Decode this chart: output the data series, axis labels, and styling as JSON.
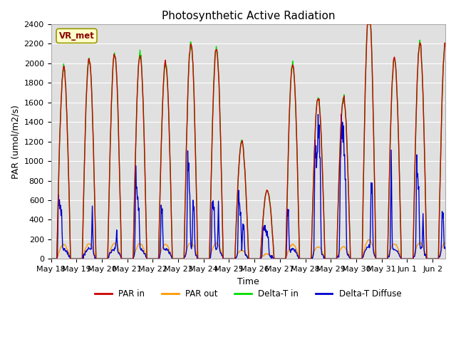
{
  "title": "Photosynthetic Active Radiation",
  "xlabel": "Time",
  "ylabel": "PAR (umol/m2/s)",
  "ylim": [
    0,
    2400
  ],
  "yticks": [
    0,
    200,
    400,
    600,
    800,
    1000,
    1200,
    1400,
    1600,
    1800,
    2000,
    2200,
    2400
  ],
  "legend_labels": [
    "PAR in",
    "PAR out",
    "Delta-T in",
    "Delta-T Diffuse"
  ],
  "legend_colors": [
    "#cc0000",
    "#ff9900",
    "#00dd00",
    "#0000cc"
  ],
  "box_label": "VR_met",
  "box_bg": "#ffffcc",
  "box_text_color": "#880000",
  "plot_bg": "#e0e0e0",
  "fig_bg": "#ffffff",
  "grid_color": "#ffffff",
  "line_width": 1.0
}
